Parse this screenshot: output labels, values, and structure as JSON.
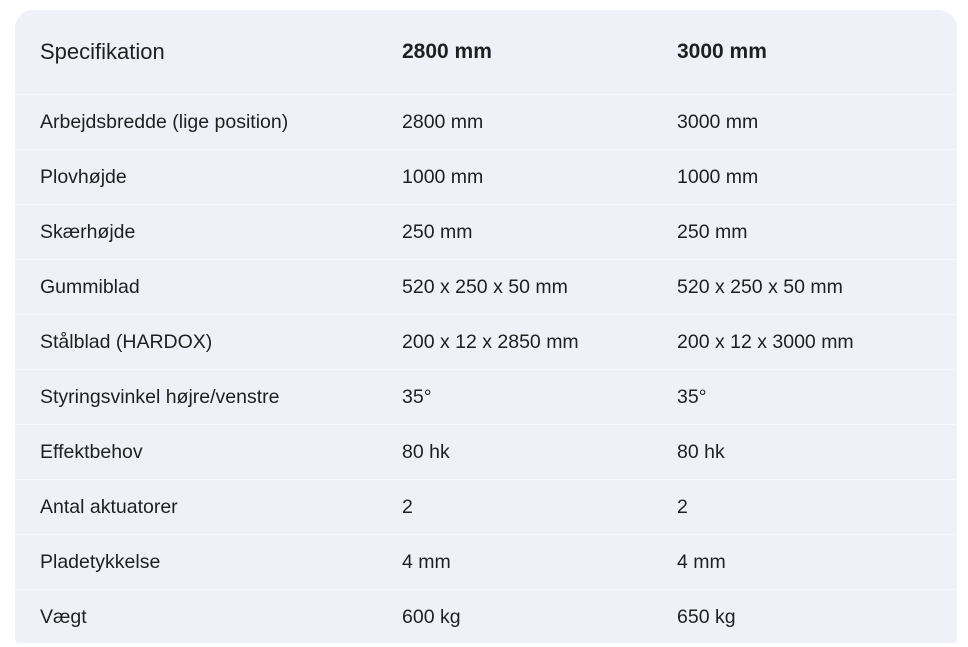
{
  "table": {
    "headers": [
      "Specifikation",
      "2800 mm",
      "3000 mm"
    ],
    "rows": [
      [
        "Arbejdsbredde (lige position)",
        "2800 mm",
        "3000 mm"
      ],
      [
        "Plovhøjde",
        "1000 mm",
        "1000 mm"
      ],
      [
        "Skærhøjde",
        "250 mm",
        "250 mm"
      ],
      [
        "Gummiblad",
        "520 x 250 x 50 mm",
        "520 x 250 x 50 mm"
      ],
      [
        "Stålblad (HARDOX)",
        "200 x 12 x 2850 mm",
        "200 x 12 x 3000 mm"
      ],
      [
        "Styringsvinkel højre/venstre",
        "35°",
        "35°"
      ],
      [
        "Effektbehov",
        "80 hk",
        "80 hk"
      ],
      [
        "Antal aktuatorer",
        "2",
        "2"
      ],
      [
        "Pladetykkelse",
        "4 mm",
        "4 mm"
      ],
      [
        "Vægt",
        "600 kg",
        "650 kg"
      ]
    ]
  }
}
